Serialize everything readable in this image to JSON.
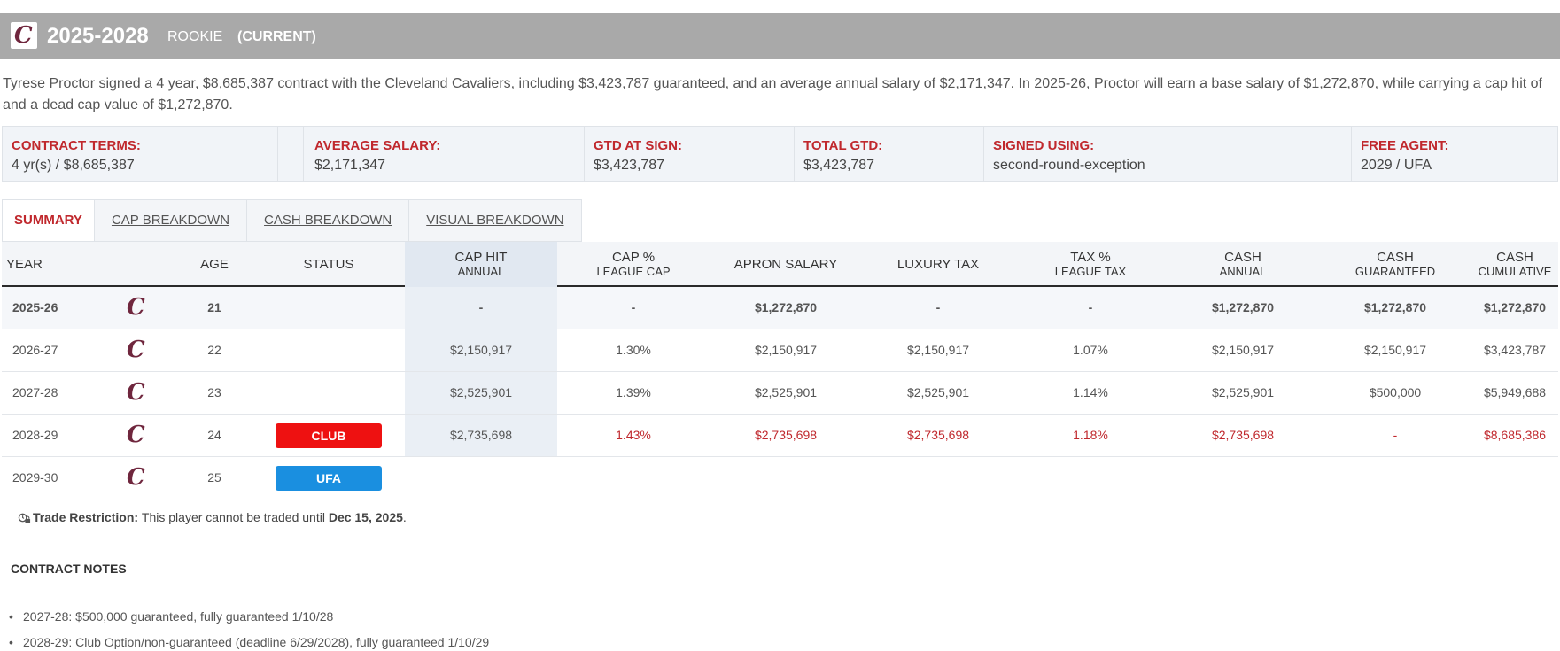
{
  "header": {
    "logo_letter": "C",
    "years": "2025-2028",
    "contract_type": "ROOKIE",
    "current_label": "(CURRENT)"
  },
  "summary": "Tyrese Proctor signed a 4 year, $8,685,387 contract with the Cleveland Cavaliers, including $3,423,787 guaranteed, and an average annual salary of $2,171,347. In 2025-26, Proctor will earn a base salary of $1,272,870, while carrying a cap hit of and a dead cap value of $1,272,870.",
  "terms": [
    {
      "label": "CONTRACT TERMS:",
      "value": "4 yr(s) / $8,685,387"
    },
    {
      "label": "AVERAGE SALARY:",
      "value": "$2,171,347"
    },
    {
      "label": "GTD AT SIGN:",
      "value": "$3,423,787"
    },
    {
      "label": "TOTAL GTD:",
      "value": "$3,423,787"
    },
    {
      "label": "SIGNED USING:",
      "value": "second-round-exception"
    },
    {
      "label": "FREE AGENT:",
      "value": "2029 / UFA"
    }
  ],
  "tabs": [
    "SUMMARY",
    "CAP BREAKDOWN",
    "CASH BREAKDOWN",
    "VISUAL BREAKDOWN"
  ],
  "table": {
    "headers": {
      "year": "YEAR",
      "age": "AGE",
      "status": "STATUS",
      "cap_hit": {
        "top": "CAP HIT",
        "sub": "ANNUAL"
      },
      "cap_pct": {
        "top": "CAP %",
        "sub": "LEAGUE CAP"
      },
      "apron": "APRON SALARY",
      "luxury": "LUXURY TAX",
      "tax_pct": {
        "top": "TAX %",
        "sub": "LEAGUE TAX"
      },
      "cash_annual": {
        "top": "CASH",
        "sub": "ANNUAL"
      },
      "cash_gtd": {
        "top": "CASH",
        "sub": "GUARANTEED"
      },
      "cash_cum": {
        "top": "CASH",
        "sub": "CUMULATIVE"
      }
    },
    "rows": [
      {
        "year": "2025-26",
        "logo": "C",
        "age": "21",
        "status": "",
        "cap_hit": "-",
        "cap_pct": "-",
        "apron": "$1,272,870",
        "luxury": "-",
        "tax_pct": "-",
        "cash_annual": "$1,272,870",
        "cash_gtd": "$1,272,870",
        "cash_cum": "$1,272,870"
      },
      {
        "year": "2026-27",
        "logo": "C",
        "age": "22",
        "status": "",
        "cap_hit": "$2,150,917",
        "cap_pct": "1.30%",
        "apron": "$2,150,917",
        "luxury": "$2,150,917",
        "tax_pct": "1.07%",
        "cash_annual": "$2,150,917",
        "cash_gtd": "$2,150,917",
        "cash_cum": "$3,423,787"
      },
      {
        "year": "2027-28",
        "logo": "C",
        "age": "23",
        "status": "",
        "cap_hit": "$2,525,901",
        "cap_pct": "1.39%",
        "apron": "$2,525,901",
        "luxury": "$2,525,901",
        "tax_pct": "1.14%",
        "cash_annual": "$2,525,901",
        "cash_gtd": "$500,000",
        "cash_cum": "$5,949,688"
      },
      {
        "year": "2028-29",
        "logo": "C",
        "age": "24",
        "status": "CLUB",
        "cap_hit": "$2,735,698",
        "cap_pct": "1.43%",
        "apron": "$2,735,698",
        "luxury": "$2,735,698",
        "tax_pct": "1.18%",
        "cash_annual": "$2,735,698",
        "cash_gtd": "-",
        "cash_cum": "$8,685,386"
      },
      {
        "year": "2029-30",
        "logo": "C",
        "age": "25",
        "status": "UFA"
      }
    ]
  },
  "colors": {
    "club_badge": "#ee1111",
    "ufa_badge": "#1a8fe0",
    "accent_red": "#c0282d",
    "cavs_wine": "#6f263d"
  },
  "trade_restriction": {
    "label": "Trade Restriction:",
    "text": "This player cannot be traded until",
    "date": "Dec 15, 2025",
    "period": "."
  },
  "notes": {
    "title": "CONTRACT NOTES",
    "items": [
      "2027-28: $500,000 guaranteed, fully guaranteed 1/10/28",
      "2028-29: Club Option/non-guaranteed (deadline 6/29/2028), fully guaranteed 1/10/29"
    ]
  }
}
